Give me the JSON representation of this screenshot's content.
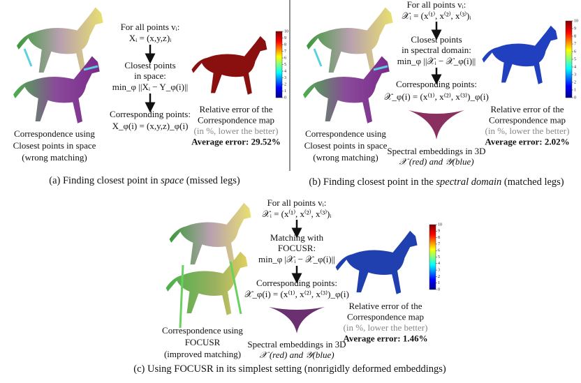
{
  "panels": [
    {
      "left_caption": [
        "Correspondence using",
        "Closest points in space",
        "(wrong matching)"
      ],
      "steps": [
        "For all points vᵢ:",
        "Xᵢ = (x,y,z)ᵢ",
        "Closest points",
        "in space:",
        "min_φ ||Xᵢ − Y_φ(i)||",
        "Corresponding points:",
        "X_φ(i) = (x,y,z)_φ(i)"
      ],
      "error_text": [
        "Relative error of the",
        "Correspondence map",
        "(in %, lower the better)",
        "Average error: 29.52%"
      ],
      "colorbar": {
        "ticks": [
          0,
          1,
          2,
          3,
          4,
          5,
          6,
          7,
          8,
          9,
          10
        ]
      },
      "caption": [
        "(a) Finding closest point in ",
        "space",
        " (missed legs)"
      ]
    },
    {
      "left_caption": [
        "Correspondence using",
        "Closest points in space",
        "(wrong matching)"
      ],
      "steps": [
        "For all points vᵢ:",
        "𝒳ᵢ = (x⁽¹⁾, x⁽²⁾, x⁽³⁾)ᵢ",
        "Closest points",
        "in spectral domain:",
        "min_φ ||𝒳ᵢ − 𝒳_φ(i)||",
        "Corresponding points:",
        "𝒳_φ(i) = (x⁽¹⁾, x⁽²⁾, x⁽³⁾)_φ(i)"
      ],
      "embedding": [
        "Spectral embeddings in 3D",
        "𝒳 (red) and 𝒴(blue)"
      ],
      "error_text": [
        "Relative error of the",
        "Correspondence map",
        "(in %, lower the better)",
        "Average error: 2.02%"
      ],
      "colorbar": {
        "ticks": [
          0,
          1,
          2,
          3,
          4,
          5,
          6,
          7,
          8,
          9,
          10
        ]
      },
      "caption": [
        "(b) Finding closest point in the ",
        "spectral domain",
        " (matched legs)"
      ]
    },
    {
      "left_caption": [
        "Correspondence using",
        "FOCUSR",
        "(improved matching)"
      ],
      "steps": [
        "For all points vᵢ:",
        "𝒳ᵢ = (x⁽¹⁾, x⁽²⁾, x⁽³⁾)ᵢ",
        "Matching with",
        "FOCUSR:",
        "min_φ |𝒳ᵢ − 𝒳_φ(i)||",
        "Corresponding points:",
        "𝒳_φ(i) = (x⁽¹⁾, x⁽²⁾, x⁽³⁾)_φ(i)"
      ],
      "embedding": [
        "Spectral embeddings in 3D",
        "𝒳 (red) and 𝒴(blue)"
      ],
      "error_text": [
        "Relative error of the",
        "Correspondence map",
        "(in %, lower the better)",
        "Average error: 1.46%"
      ],
      "colorbar": {
        "ticks": [
          0,
          1,
          2,
          3,
          4,
          5,
          6,
          7,
          8,
          9,
          10
        ]
      },
      "caption": [
        "(c) Using FOCUSR in its simplest setting (nonrigidly deformed embeddings)"
      ]
    }
  ]
}
